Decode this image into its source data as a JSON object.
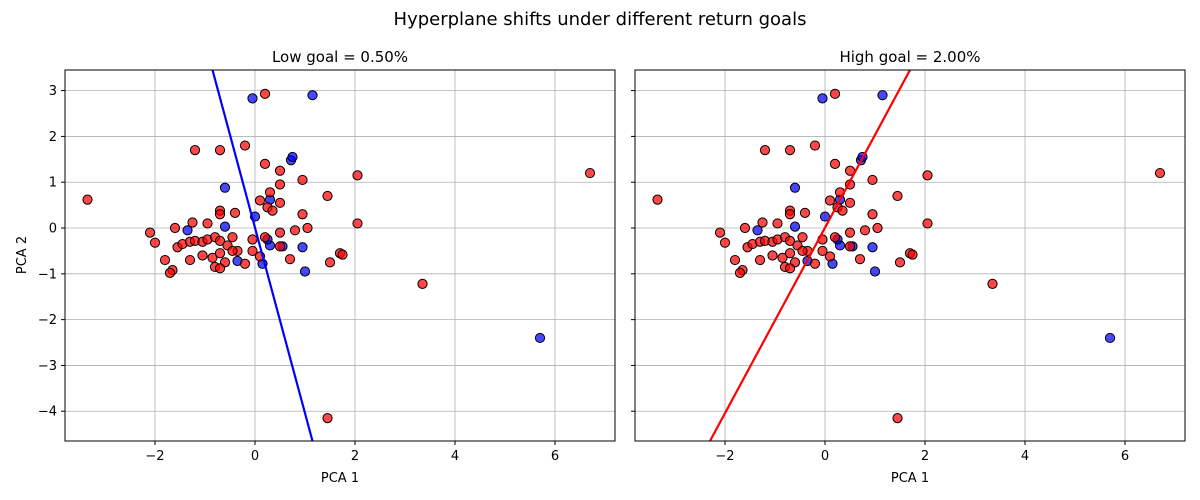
{
  "figure": {
    "suptitle": "Hyperplane shifts under different return goals"
  },
  "colors": {
    "class_low": "#0000ff",
    "class_high": "#ff0000",
    "grid": "#b0b0b0",
    "marker_edge": "#000000"
  },
  "chart_data": [
    {
      "type": "scatter",
      "title": "Low goal = 0.50%",
      "xlabel": "PCA 1",
      "ylabel": "PCA 2",
      "xlim": [
        -3.8,
        7.2
      ],
      "ylim": [
        -4.65,
        3.45
      ],
      "xticks": [
        -2,
        0,
        2,
        4,
        6
      ],
      "yticks": [
        -4,
        -3,
        -2,
        -1,
        0,
        1,
        2,
        3
      ],
      "grid": true,
      "line": {
        "color": "blue",
        "points": [
          [
            -0.85,
            3.45
          ],
          [
            1.15,
            -4.65
          ]
        ]
      },
      "series": [
        {
          "color": "blue",
          "points": [
            [
              -0.05,
              2.83
            ],
            [
              1.15,
              2.9
            ],
            [
              0.72,
              1.48
            ],
            [
              0.75,
              1.55
            ],
            [
              -0.6,
              0.88
            ],
            [
              -1.35,
              -0.05
            ],
            [
              -0.6,
              0.03
            ],
            [
              0.3,
              0.62
            ],
            [
              0.3,
              -0.38
            ],
            [
              0.55,
              -0.4
            ],
            [
              0.95,
              -0.42
            ],
            [
              1.0,
              -0.95
            ],
            [
              -0.35,
              -0.72
            ],
            [
              0.15,
              -0.78
            ],
            [
              0.25,
              -0.25
            ],
            [
              0.0,
              0.25
            ],
            [
              5.7,
              -2.4
            ]
          ]
        },
        {
          "color": "red",
          "points": [
            [
              -3.35,
              0.62
            ],
            [
              0.2,
              2.93
            ],
            [
              -1.2,
              1.7
            ],
            [
              -0.7,
              1.7
            ],
            [
              -0.2,
              1.8
            ],
            [
              0.2,
              1.4
            ],
            [
              0.5,
              1.25
            ],
            [
              0.95,
              1.05
            ],
            [
              2.05,
              1.15
            ],
            [
              6.7,
              1.2
            ],
            [
              0.3,
              0.78
            ],
            [
              1.45,
              0.7
            ],
            [
              0.5,
              0.95
            ],
            [
              -0.7,
              0.38
            ],
            [
              -0.7,
              0.3
            ],
            [
              -0.4,
              0.33
            ],
            [
              0.1,
              0.6
            ],
            [
              0.25,
              0.45
            ],
            [
              0.35,
              0.38
            ],
            [
              0.5,
              0.55
            ],
            [
              0.95,
              0.3
            ],
            [
              2.05,
              0.1
            ],
            [
              -1.6,
              0.0
            ],
            [
              -1.25,
              0.12
            ],
            [
              -0.95,
              0.1
            ],
            [
              -2.1,
              -0.1
            ],
            [
              -2.0,
              -0.32
            ],
            [
              -1.55,
              -0.42
            ],
            [
              -1.45,
              -0.35
            ],
            [
              -1.3,
              -0.3
            ],
            [
              -1.2,
              -0.28
            ],
            [
              -1.05,
              -0.3
            ],
            [
              -0.95,
              -0.25
            ],
            [
              -0.8,
              -0.2
            ],
            [
              -0.7,
              -0.28
            ],
            [
              -0.55,
              -0.38
            ],
            [
              -0.45,
              -0.2
            ],
            [
              -0.35,
              -0.5
            ],
            [
              -0.05,
              -0.25
            ],
            [
              0.2,
              -0.2
            ],
            [
              0.5,
              -0.1
            ],
            [
              0.8,
              -0.05
            ],
            [
              1.05,
              0.0
            ],
            [
              -1.8,
              -0.7
            ],
            [
              -1.3,
              -0.7
            ],
            [
              -1.05,
              -0.6
            ],
            [
              -0.85,
              -0.65
            ],
            [
              -0.7,
              -0.55
            ],
            [
              -0.6,
              -0.75
            ],
            [
              -0.45,
              -0.5
            ],
            [
              -0.2,
              -0.78
            ],
            [
              -0.05,
              -0.5
            ],
            [
              0.1,
              -0.62
            ],
            [
              0.5,
              -0.4
            ],
            [
              0.7,
              -0.68
            ],
            [
              -0.8,
              -0.85
            ],
            [
              -0.7,
              -0.88
            ],
            [
              -1.65,
              -0.92
            ],
            [
              -1.7,
              -0.98
            ],
            [
              1.7,
              -0.55
            ],
            [
              1.75,
              -0.58
            ],
            [
              1.5,
              -0.75
            ],
            [
              3.35,
              -1.22
            ],
            [
              1.45,
              -4.15
            ]
          ]
        }
      ]
    },
    {
      "type": "scatter",
      "title": "High goal = 2.00%",
      "xlabel": "PCA 1",
      "ylabel": "",
      "xlim": [
        -3.8,
        7.2
      ],
      "ylim": [
        -4.65,
        3.45
      ],
      "xticks": [
        -2,
        0,
        2,
        4,
        6
      ],
      "yticks": [
        -4,
        -3,
        -2,
        -1,
        0,
        1,
        2,
        3
      ],
      "grid": true,
      "line": {
        "color": "red",
        "points": [
          [
            -2.3,
            -4.65
          ],
          [
            1.7,
            3.45
          ]
        ]
      },
      "series": [
        {
          "color": "blue",
          "points": [
            [
              -0.05,
              2.83
            ],
            [
              1.15,
              2.9
            ],
            [
              0.72,
              1.48
            ],
            [
              0.75,
              1.55
            ],
            [
              -0.6,
              0.88
            ],
            [
              -1.35,
              -0.05
            ],
            [
              -0.6,
              0.03
            ],
            [
              0.3,
              0.62
            ],
            [
              0.3,
              -0.38
            ],
            [
              0.55,
              -0.4
            ],
            [
              0.95,
              -0.42
            ],
            [
              1.0,
              -0.95
            ],
            [
              -0.35,
              -0.72
            ],
            [
              0.15,
              -0.78
            ],
            [
              0.25,
              -0.25
            ],
            [
              0.0,
              0.25
            ],
            [
              5.7,
              -2.4
            ]
          ]
        },
        {
          "color": "red",
          "points": [
            [
              -3.35,
              0.62
            ],
            [
              0.2,
              2.93
            ],
            [
              -1.2,
              1.7
            ],
            [
              -0.7,
              1.7
            ],
            [
              -0.2,
              1.8
            ],
            [
              0.2,
              1.4
            ],
            [
              0.5,
              1.25
            ],
            [
              0.95,
              1.05
            ],
            [
              2.05,
              1.15
            ],
            [
              6.7,
              1.2
            ],
            [
              0.3,
              0.78
            ],
            [
              1.45,
              0.7
            ],
            [
              0.5,
              0.95
            ],
            [
              -0.7,
              0.38
            ],
            [
              -0.7,
              0.3
            ],
            [
              -0.4,
              0.33
            ],
            [
              0.1,
              0.6
            ],
            [
              0.25,
              0.45
            ],
            [
              0.35,
              0.38
            ],
            [
              0.5,
              0.55
            ],
            [
              0.95,
              0.3
            ],
            [
              2.05,
              0.1
            ],
            [
              -1.6,
              0.0
            ],
            [
              -1.25,
              0.12
            ],
            [
              -0.95,
              0.1
            ],
            [
              -2.1,
              -0.1
            ],
            [
              -2.0,
              -0.32
            ],
            [
              -1.55,
              -0.42
            ],
            [
              -1.45,
              -0.35
            ],
            [
              -1.3,
              -0.3
            ],
            [
              -1.2,
              -0.28
            ],
            [
              -1.05,
              -0.3
            ],
            [
              -0.95,
              -0.25
            ],
            [
              -0.8,
              -0.2
            ],
            [
              -0.7,
              -0.28
            ],
            [
              -0.55,
              -0.38
            ],
            [
              -0.45,
              -0.2
            ],
            [
              -0.35,
              -0.5
            ],
            [
              -0.05,
              -0.25
            ],
            [
              0.2,
              -0.2
            ],
            [
              0.5,
              -0.1
            ],
            [
              0.8,
              -0.05
            ],
            [
              1.05,
              0.0
            ],
            [
              -1.8,
              -0.7
            ],
            [
              -1.3,
              -0.7
            ],
            [
              -1.05,
              -0.6
            ],
            [
              -0.85,
              -0.65
            ],
            [
              -0.7,
              -0.55
            ],
            [
              -0.6,
              -0.75
            ],
            [
              -0.45,
              -0.5
            ],
            [
              -0.2,
              -0.78
            ],
            [
              -0.05,
              -0.5
            ],
            [
              0.1,
              -0.62
            ],
            [
              0.5,
              -0.4
            ],
            [
              0.7,
              -0.68
            ],
            [
              -0.8,
              -0.85
            ],
            [
              -0.7,
              -0.88
            ],
            [
              -1.65,
              -0.92
            ],
            [
              -1.7,
              -0.98
            ],
            [
              1.7,
              -0.55
            ],
            [
              1.75,
              -0.58
            ],
            [
              1.5,
              -0.75
            ],
            [
              3.35,
              -1.22
            ],
            [
              1.45,
              -4.15
            ]
          ]
        }
      ]
    }
  ]
}
